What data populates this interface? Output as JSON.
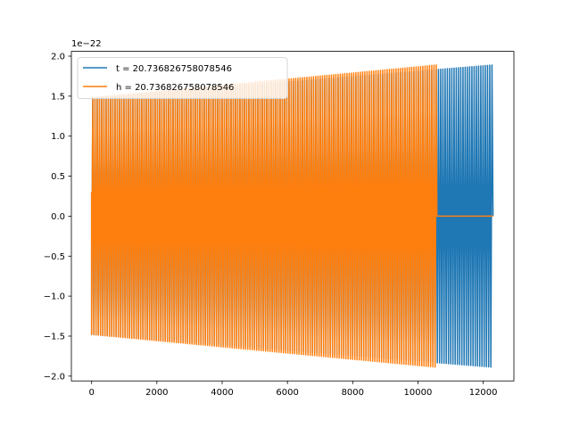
{
  "chart_data": {
    "type": "line",
    "title": "",
    "xlabel": "",
    "ylabel": "",
    "offset_label": "1e−22",
    "xlim": [
      -620,
      12940
    ],
    "ylim": [
      -2.06,
      2.06
    ],
    "x_ticks": [
      0,
      2000,
      4000,
      6000,
      8000,
      10000,
      12000
    ],
    "y_ticks": [
      -2.0,
      -1.5,
      -1.0,
      -0.5,
      0.0,
      0.5,
      1.0,
      1.5,
      2.0
    ],
    "x_tick_labels": [
      "0",
      "2000",
      "4000",
      "6000",
      "8000",
      "10000",
      "12000"
    ],
    "y_tick_labels": [
      "−2.0",
      "−1.5",
      "−1.0",
      "−0.5",
      "0.0",
      "0.5",
      "1.0",
      "1.5",
      "2.0"
    ],
    "legend_position": "top-left",
    "grid": false,
    "series": [
      {
        "name": "t = 20.736826758078546",
        "color": "#1f77b4",
        "kind": "chirp",
        "x_range": [
          0,
          12300
        ],
        "start_amplitude": 1.48,
        "end_amplitude": 1.89,
        "trailing_zero_to": 12300
      },
      {
        "name": "h = 20.736826758078546",
        "color": "#ff7f0e",
        "kind": "chirp",
        "x_range": [
          0,
          10580
        ],
        "start_amplitude": 1.48,
        "end_amplitude": 1.89,
        "trailing_zero_to": 12300
      }
    ]
  }
}
